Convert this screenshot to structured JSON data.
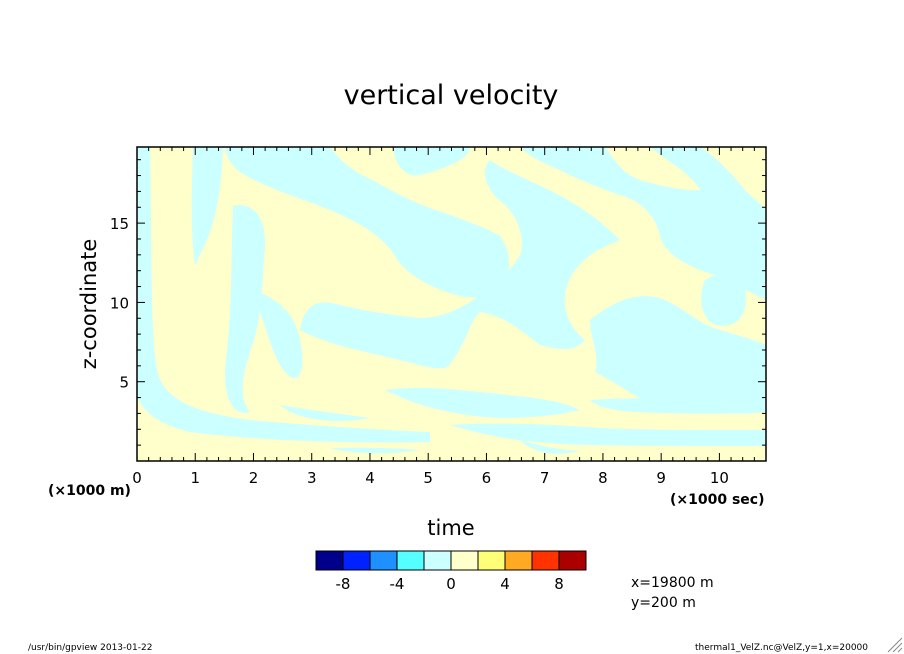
{
  "chart_data": {
    "type": "heatmap",
    "title": "vertical velocity",
    "xlabel": "time",
    "ylabel": "z-coordinate",
    "x_unit": "(×1000 sec)",
    "y_unit": "(×1000 m)",
    "xlim": [
      0,
      10.8
    ],
    "ylim": [
      0,
      19.8
    ],
    "x_ticks": [
      0,
      1,
      2,
      3,
      4,
      5,
      6,
      7,
      8,
      9,
      10
    ],
    "x_tick_labels": [
      "0",
      "1",
      "2",
      "3",
      "4",
      "5",
      "6",
      "7",
      "8",
      "9",
      "10"
    ],
    "y_ticks": [
      5,
      10,
      15
    ],
    "y_tick_labels": [
      "5",
      "10",
      "15"
    ],
    "positive_color": "#ffffcc",
    "negative_color": "#ccffff",
    "colorbar": {
      "colors": [
        "#00008b",
        "#0022ff",
        "#1e90ff",
        "#55ffff",
        "#ccffff",
        "#ffffcc",
        "#ffff77",
        "#ffaa22",
        "#ff3300",
        "#aa0000"
      ],
      "tick_labels": [
        "-8",
        "-4",
        "0",
        "4",
        "8"
      ],
      "tick_values": [
        -8,
        -4,
        0,
        4,
        8
      ]
    }
  },
  "info": {
    "line1": "x=19800 m",
    "line2": "y=200 m"
  },
  "footer": {
    "left": "/usr/bin/gpview  2013-01-22",
    "right": "thermal1_VelZ.nc@VelZ,y=1,x=20000"
  }
}
